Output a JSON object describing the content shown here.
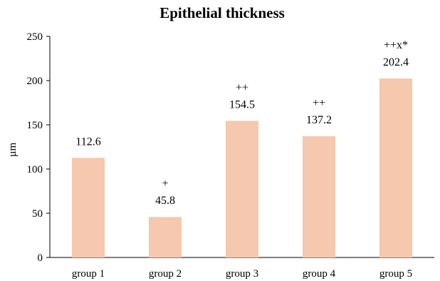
{
  "chart_data": {
    "type": "bar",
    "title": "Epithelial thickness",
    "xlabel": "",
    "ylabel": "µm",
    "ylim": [
      0,
      250
    ],
    "yticks": [
      0,
      50,
      100,
      150,
      200,
      250
    ],
    "grid": false,
    "categories": [
      "group 1",
      "group 2",
      "group 3",
      "group 4",
      "group 5"
    ],
    "values": [
      112.6,
      45.8,
      154.5,
      137.2,
      202.4
    ],
    "value_labels": [
      "112.6",
      "45.8",
      "154.5",
      "137.2",
      "202.4"
    ],
    "significance_marks": [
      "",
      "+",
      "++",
      "++",
      "++x*"
    ],
    "bar_color": "#f6c8ad",
    "axis_color": "#000000"
  }
}
